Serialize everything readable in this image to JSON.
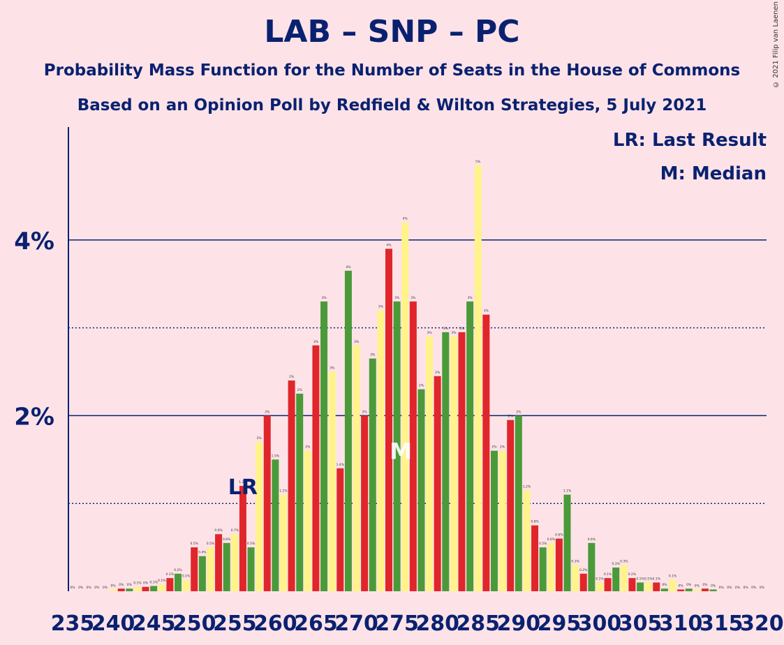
{
  "title": "LAB – SNP – PC",
  "subtitle1": "Probability Mass Function for the Number of Seats in the House of Commons",
  "subtitle2": "Based on an Opinion Poll by Redfield & Wilton Strategies, 5 July 2021",
  "copyright": "© 2021 Filip van Laenen",
  "legend": {
    "lr": "LR: Last Result",
    "median": "M: Median"
  },
  "markers": {
    "lr_label": "LR",
    "median_label": "M"
  },
  "colors": {
    "background": "#fde3e8",
    "text": "#0a2170",
    "red": "#e0262b",
    "green": "#4a9a3a",
    "yellow": "#fff38a"
  },
  "chart_data": {
    "type": "bar",
    "title": "LAB – SNP – PC",
    "x_tick_labels": [
      "235",
      "240",
      "245",
      "250",
      "255",
      "260",
      "265",
      "270",
      "275",
      "280",
      "285",
      "290",
      "295",
      "300",
      "305",
      "310",
      "315",
      "320"
    ],
    "y_tick_labels": [
      "2%",
      "4%"
    ],
    "ylim": [
      0,
      5.2
    ],
    "grid": "solid lines at 2% and 4%, dotted lines at 1% and 3%",
    "last_result_seat": 256,
    "median_seat": 276,
    "x": [
      235,
      236,
      237,
      238,
      239,
      240,
      241,
      242,
      243,
      244,
      245,
      246,
      247,
      248,
      249,
      250,
      251,
      252,
      253,
      254,
      255,
      256,
      257,
      258,
      259,
      260,
      261,
      262,
      263,
      264,
      265,
      266,
      267,
      268,
      269,
      270,
      271,
      272,
      273,
      274,
      275,
      276,
      277,
      278,
      279,
      280,
      281,
      282,
      283,
      284,
      285,
      286,
      287,
      288,
      289,
      290,
      291,
      292,
      293,
      294,
      295,
      296,
      297,
      298,
      299,
      300,
      301,
      302,
      303,
      304,
      305,
      306,
      307,
      308,
      309,
      310,
      311,
      312,
      313,
      314,
      315,
      316,
      317,
      318,
      319,
      320
    ],
    "values": [
      0,
      0,
      0,
      0,
      0,
      0.02,
      0.03,
      0.03,
      0.05,
      0.05,
      0.06,
      0.08,
      0.15,
      0.2,
      0.13,
      0.5,
      0.4,
      0.5,
      0.65,
      0.55,
      0.65,
      1.2,
      0.5,
      1.7,
      2,
      1.5,
      1.1,
      2.4,
      2.25,
      1.6,
      2.8,
      3.3,
      2.5,
      1.4,
      3.65,
      2.8,
      2,
      2.65,
      3.2,
      3.9,
      3.3,
      4.2,
      3.3,
      2.3,
      2.9,
      2.45,
      2.95,
      2.9,
      2.95,
      3.3,
      4.85,
      3.15,
      1.6,
      1.6,
      1.95,
      2,
      1.15,
      0.75,
      0.5,
      0.55,
      0.6,
      1.1,
      0.3,
      0.2,
      0.55,
      0.1,
      0.15,
      0.27,
      0.3,
      0.15,
      0.1,
      0.1,
      0.1,
      0.03,
      0.13,
      0.02,
      0.03,
      0.02,
      0.03,
      0.02,
      0,
      0,
      0,
      0,
      0,
      0
    ],
    "data_labels": [
      "0%",
      "0%",
      "0%",
      "0%",
      "0%",
      "0%",
      "0%",
      "0%",
      "0.1%",
      "0%",
      "0.1%",
      "0.1%",
      "0.1%",
      "0.2%",
      "0.1%",
      "0.5%",
      "0.4%",
      "0.5%",
      "0.6%",
      "0.6%",
      "0.7%",
      "1.2%",
      "0.5%",
      "2%",
      "2%",
      "1.5%",
      "1.1%",
      "2%",
      "2%",
      "2%",
      "3%",
      "3%",
      "3%",
      "1.4%",
      "4%",
      "3%",
      "2%",
      "3%",
      "3%",
      "4%",
      "3%",
      "4%",
      "3%",
      "2%",
      "3%",
      "2%",
      "3%",
      "3%",
      "3%",
      "3%",
      "5%",
      "3%",
      "2%",
      "2%",
      "2%",
      "2%",
      "1.2%",
      "0.8%",
      "0.5%",
      "0.6%",
      "0.6%",
      "1.1%",
      "0.3%",
      "0.2%",
      "0.6%",
      "0.1%",
      "0.1%",
      "0.3%",
      "0.3%",
      "0.2%",
      "0.1%",
      "0.1%",
      "0.1%",
      "0%",
      "0.1%",
      "0%",
      "0%",
      "0%",
      "0%",
      "0%",
      "0%",
      "0%",
      "0%",
      "0%",
      "0%",
      "0%"
    ],
    "bar_color_cycle": [
      "red",
      "green",
      "yellow"
    ]
  }
}
